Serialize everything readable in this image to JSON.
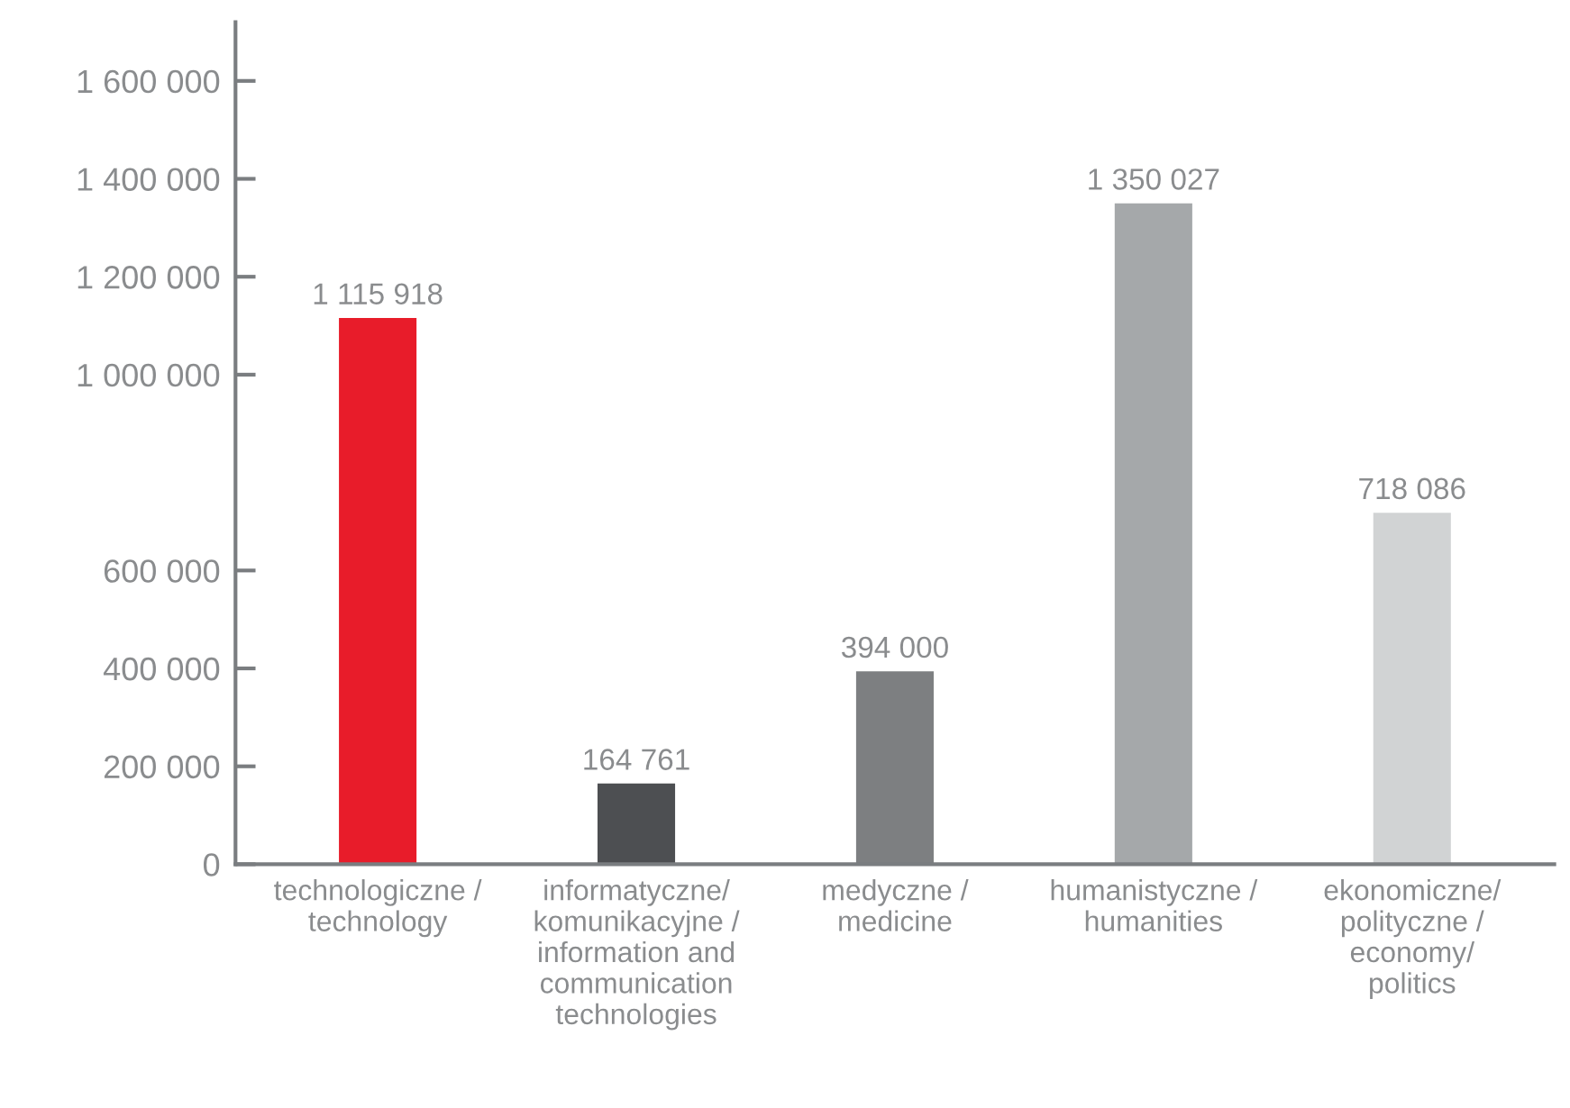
{
  "chart_data": {
    "type": "bar",
    "categories": [
      "technologiczne /\ntechnology",
      "informatyczne/\nkomunikacyjne /\ninformation and\ncommunication\ntechnologies",
      "medyczne /\nmedicine",
      "humanistyczne /\nhumanities",
      "ekonomiczne/\npolityczne /\neconomy/\npolitics"
    ],
    "values": [
      1115918,
      164761,
      394000,
      1350027,
      718086
    ],
    "colors": [
      "#e81c2a",
      "#4d4f52",
      "#7d7f81",
      "#a5a8aa",
      "#d1d3d4"
    ],
    "value_labels": [
      "1 115 918",
      "164 761",
      "394 000",
      "1 350 027",
      "718 086"
    ],
    "ylim": [
      0,
      1720000
    ],
    "yticks": [
      0,
      {
        "value": 200000,
        "label": "200 000"
      },
      {
        "value": 400000,
        "label": "400 000"
      },
      {
        "value": 600000,
        "label": "600 000"
      },
      {
        "value": 1000000,
        "label": "1 000 000"
      },
      {
        "value": 1200000,
        "label": "1 200 000"
      },
      {
        "value": 1400000,
        "label": "1 400 000"
      },
      {
        "value": 1600000,
        "label": "1 600 000"
      }
    ],
    "grid": false,
    "legend": false
  }
}
